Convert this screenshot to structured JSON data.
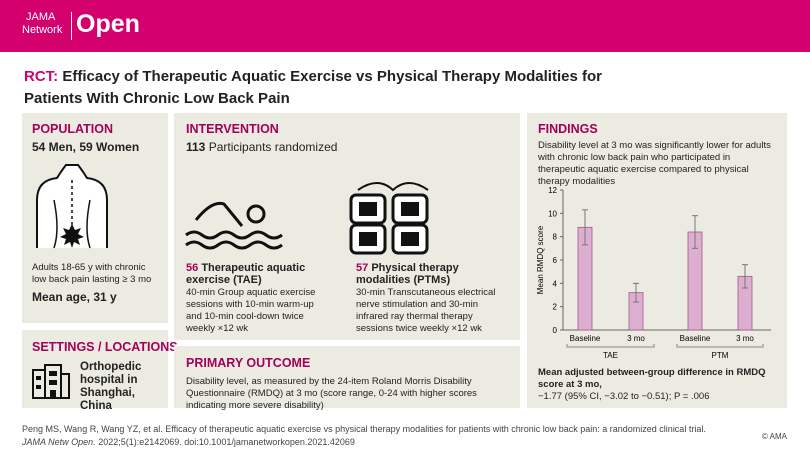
{
  "header": {
    "brand_top": "JAMA",
    "brand_bottom": "Network",
    "brand_open": "Open"
  },
  "title": {
    "label": "RCT:",
    "text": "Efficacy  of Therapeutic Aquatic Exercise vs Physical Therapy Modalities for Patients With Chronic Low Back Pain"
  },
  "population": {
    "heading": "POPULATION",
    "sex": "54 Men, 59 Women",
    "description": "Adults 18-65 y with chronic low back pain lasting ≥ 3 mo",
    "mean_age": "Mean age,  31 y"
  },
  "intervention": {
    "heading": "INTERVENTION",
    "participants_n": "113",
    "participants_text": "Participants randomized",
    "arms": [
      {
        "n": "56",
        "name": "Therapeutic aquatic exercise (TAE)",
        "description": "40-min Group aquatic exercise sessions with 10-min warm-up and 10-min cool-down twice weekly ×12 wk"
      },
      {
        "n": "57",
        "name": "Physical therapy modalities (PTMs)",
        "description": "30-min Transcutaneous electrical nerve stimulation and 30-min infrared ray thermal therapy sessions twice weekly ×12 wk"
      }
    ]
  },
  "settings": {
    "heading": "SETTINGS / LOCATIONS",
    "text": "Orthopedic hospital in Shanghai, China"
  },
  "primary_outcome": {
    "heading": "PRIMARY OUTCOME",
    "text": "Disability level, as measured by the 24-item Roland Morris Disability Questionnaire (RMDQ) at 3 mo (score range, 0-24 with higher scores indicating more severe disability)"
  },
  "findings": {
    "heading": "FINDINGS",
    "text": "Disability level at 3 mo was significantly lower for adults with chronic low back pain who participated in therapeutic aquatic exercise compared to physical therapy modalities",
    "chart": {
      "type": "bar",
      "y_label": "Mean RMDQ score",
      "groups": [
        "TAE",
        "PTM"
      ],
      "categories": [
        "Baseline",
        "3 mo",
        "Baseline",
        "3 mo"
      ],
      "values": [
        8.8,
        3.2,
        8.4,
        4.6
      ],
      "errors": [
        1.5,
        0.8,
        1.4,
        1.0
      ],
      "color": "#dcaed0",
      "ylim": [
        0,
        12
      ],
      "yticks": [
        0,
        2,
        4,
        6,
        8,
        10,
        12
      ]
    },
    "summary_heading": "Mean adjusted between-group difference in RMDQ score at 3 mo,",
    "summary": "−1.77 (95% CI, −3.02 to −0.51); P = .006"
  },
  "citation": {
    "text": "Peng MS, Wang R, Wang YZ, et al. Efficacy of therapeutic aquatic exercise vs physical therapy modalities for patients with chronic low back pain: a randomized clinical trial.",
    "journal": "JAMA Netw Open.",
    "reference": "2022;5(1):e2142069. doi:10.1001/jamanetworkopen.2021.42069",
    "copyright": "© AMA"
  }
}
